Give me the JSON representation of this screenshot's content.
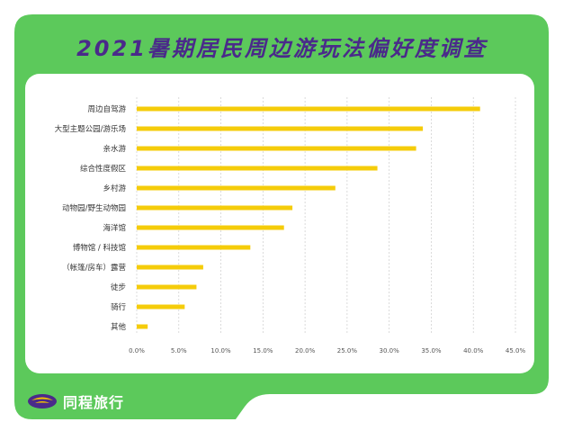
{
  "colors": {
    "frame_green": "#5cc95b",
    "title_purple": "#4a2a8a",
    "bar_yellow": "#f5cc0a",
    "grid_gray": "#cccccc",
    "logo_purple": "#4a2a8a",
    "logo_yellow": "#f5c400"
  },
  "brand": {
    "name": "同程旅行",
    "logo_icon": "tongcheng-logo-icon"
  },
  "chart_data": {
    "type": "bar",
    "orientation": "horizontal",
    "title": "2021暑期居民周边游玩法偏好度调查",
    "categories": [
      "周边自驾游",
      "大型主题公园/游乐场",
      "亲水游",
      "综合性度假区",
      "乡村游",
      "动物园/野生动物园",
      "海洋馆",
      "博物馆 / 科技馆",
      "（帐篷/房车）露营",
      "徒步",
      "骑行",
      "其他"
    ],
    "values": [
      40.8,
      34.0,
      33.2,
      28.6,
      23.6,
      18.5,
      17.5,
      13.5,
      7.9,
      7.1,
      5.7,
      1.3
    ],
    "xlim": [
      0,
      45
    ],
    "xticks": [
      "0.0%",
      "5.0%",
      "10.0%",
      "15.0%",
      "20.0%",
      "25.0%",
      "30.0%",
      "35.0%",
      "40.0%",
      "45.0%"
    ],
    "grid": "vertical-dashed",
    "legend": "none"
  }
}
